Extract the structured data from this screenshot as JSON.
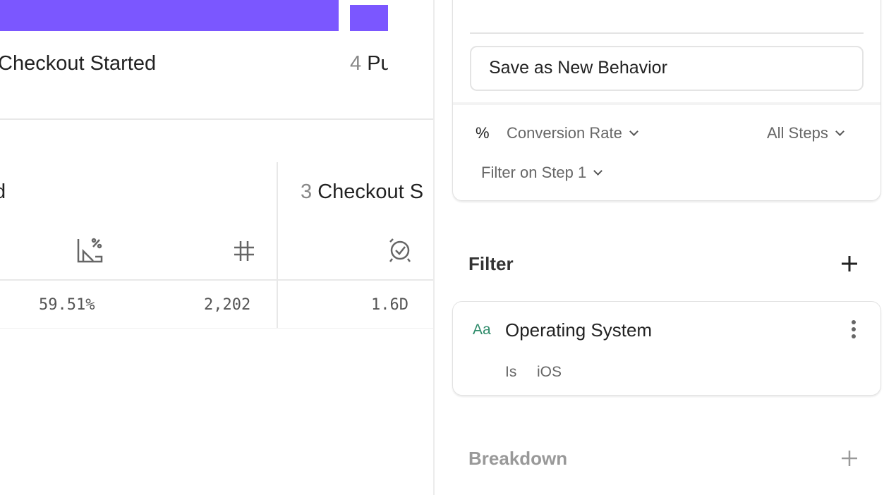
{
  "chart": {
    "steps": [
      {
        "number": "",
        "label": "Checkout Started"
      },
      {
        "number": "4",
        "label": "Pu"
      }
    ],
    "bar_color": "#7b57ff"
  },
  "table": {
    "prev_step_label": "d",
    "step3": {
      "number": "3",
      "label": "Checkout S"
    },
    "icons": [
      "conversion-rate-icon",
      "count-hash-icon",
      "time-to-convert-icon"
    ],
    "values": {
      "conversion_rate": "59.51%",
      "count": "2,202",
      "time": "1.6D"
    }
  },
  "sidebar": {
    "save_behavior": "Save as New Behavior",
    "metric_symbol": "%",
    "metric": "Conversion Rate",
    "steps_scope": "All Steps",
    "filter_on_step": "Filter on Step 1",
    "filter_title": "Filter",
    "filter_item": {
      "type_icon": "Aa",
      "property": "Operating System",
      "operator": "Is",
      "value": "iOS"
    },
    "breakdown_title": "Breakdown",
    "type_color": "#2e8b6a"
  }
}
